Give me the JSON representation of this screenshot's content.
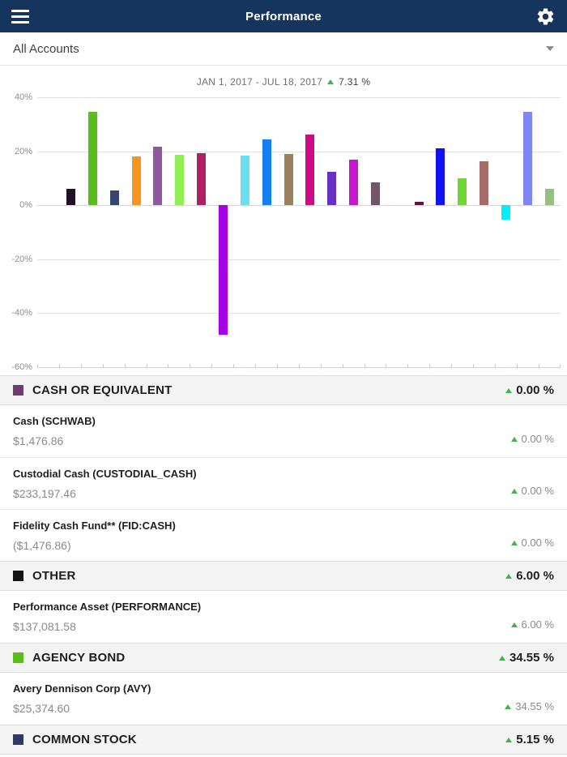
{
  "header": {
    "title": "Performance"
  },
  "account_selector": {
    "label": "All Accounts"
  },
  "icons": {
    "menu": "hamburger",
    "settings": "gear",
    "dropdown": "chevron-down",
    "change_indicator": "triangle-up"
  },
  "colors": {
    "appbar_bg": "#15355E",
    "positive_green": "#3CB54A",
    "section_bg": "#F3F3F3"
  },
  "chart_data": {
    "type": "bar",
    "title": "JAN 1, 2017 - JUL 18, 2017",
    "overall_change": "7.31 %",
    "xlabel": "",
    "ylabel": "",
    "ylim": [
      -60,
      40
    ],
    "grid": true,
    "legend": false,
    "y_ticks": [
      "40%",
      "20%",
      "0%",
      "-20%",
      "-40%",
      "-60%"
    ],
    "bars": [
      {
        "value": 6.0,
        "color": "#221026"
      },
      {
        "value": 34.55,
        "color": "#5ABD1A"
      },
      {
        "value": 5.5,
        "color": "#36456B"
      },
      {
        "value": 18.0,
        "color": "#F5941E"
      },
      {
        "value": 21.7,
        "color": "#9158A2"
      },
      {
        "value": 18.7,
        "color": "#90EE52"
      },
      {
        "value": 19.2,
        "color": "#B01E64"
      },
      {
        "value": -48.0,
        "color": "#A800E6"
      },
      {
        "value": 18.3,
        "color": "#6ADFF2"
      },
      {
        "value": 24.3,
        "color": "#1480F0"
      },
      {
        "value": 18.9,
        "color": "#98815C"
      },
      {
        "value": 26.3,
        "color": "#D00A86"
      },
      {
        "value": 12.2,
        "color": "#6730C2"
      },
      {
        "value": 16.9,
        "color": "#C517CE"
      },
      {
        "value": 8.4,
        "color": "#705865"
      },
      {
        "value": 0.0,
        "color": null
      },
      {
        "value": 1.3,
        "color": "#700D36"
      },
      {
        "value": 21.2,
        "color": "#1212F0"
      },
      {
        "value": 9.9,
        "color": "#70D435"
      },
      {
        "value": 16.1,
        "color": "#A66C6C"
      },
      {
        "value": -5.4,
        "color": "#00F0FA"
      },
      {
        "value": 34.5,
        "color": "#7E85F5"
      },
      {
        "value": 6.0,
        "color": "#92C27C"
      }
    ]
  },
  "sections": [
    {
      "label": "CASH OR EQUIVALENT",
      "swatch": "#6D3C70",
      "change": "0.00 %",
      "rows": [
        {
          "name": "Cash (SCHWAB)",
          "value": "$1,476.86",
          "change": "0.00 %"
        },
        {
          "name": "Custodial Cash (CUSTODIAL_CASH)",
          "value": "$233,197.46",
          "change": "0.00 %"
        },
        {
          "name": "Fidelity Cash Fund** (FID:CASH)",
          "value": "($1,476.86)",
          "change": "0.00 %"
        }
      ]
    },
    {
      "label": "OTHER",
      "swatch": "#141414",
      "change": "6.00 %",
      "rows": [
        {
          "name": "Performance Asset (PERFORMANCE)",
          "value": "$137,081.58",
          "change": "6.00 %"
        }
      ]
    },
    {
      "label": "AGENCY BOND",
      "swatch": "#5ABD1A",
      "change": "34.55 %",
      "rows": [
        {
          "name": "Avery Dennison Corp (AVY)",
          "value": "$25,374.60",
          "change": "34.55 %"
        }
      ]
    },
    {
      "label": "COMMON STOCK",
      "swatch": "#2F3A5F",
      "change": "5.15 %",
      "rows": []
    }
  ]
}
